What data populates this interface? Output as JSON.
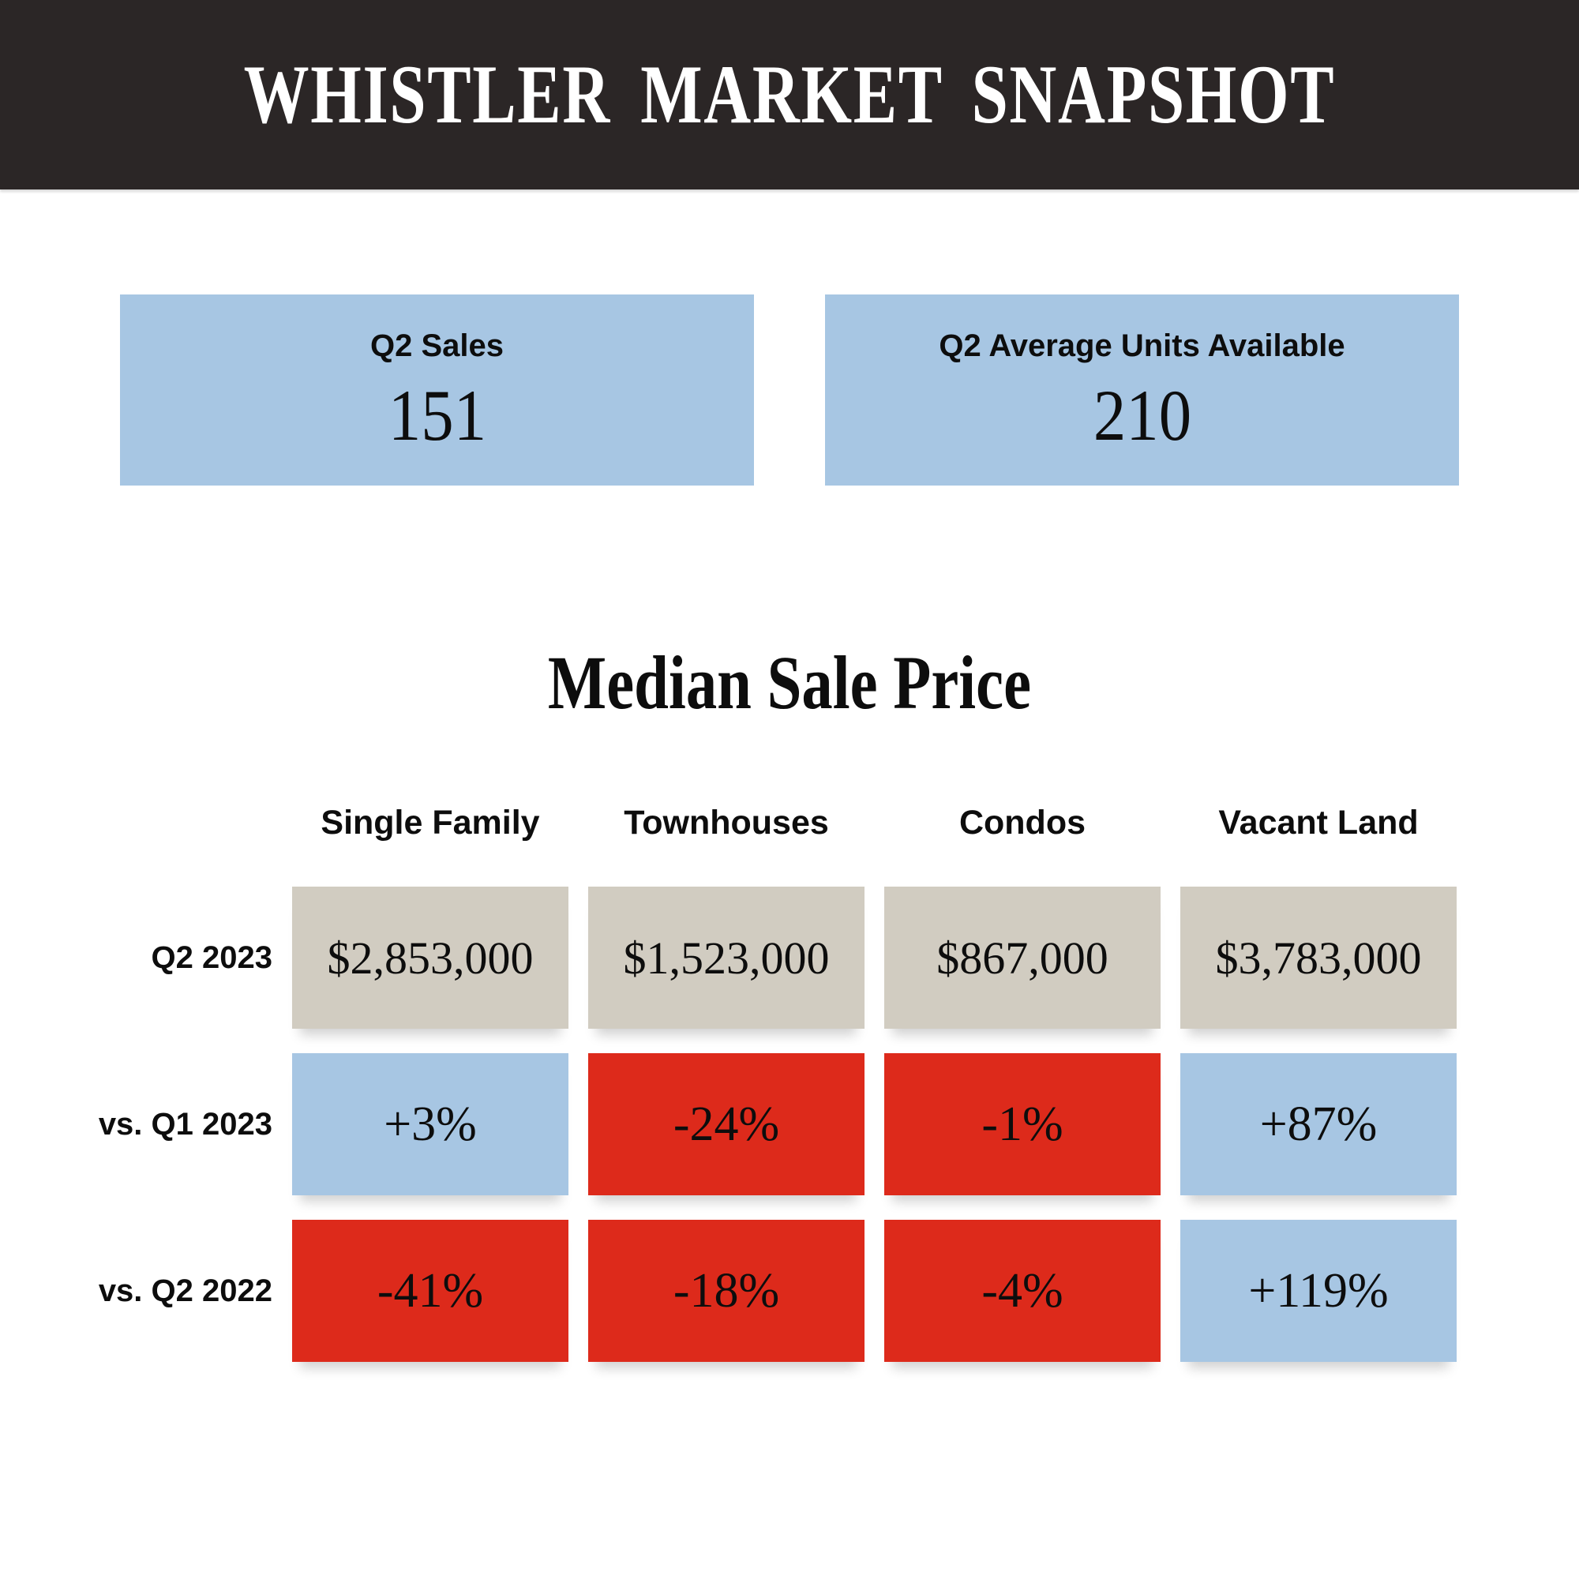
{
  "header": {
    "title": "WHISTLER MARKET SNAPSHOT"
  },
  "stats": [
    {
      "label": "Q2 Sales",
      "value": "151"
    },
    {
      "label": "Q2 Average Units Available",
      "value": "210"
    }
  ],
  "section": {
    "title": "Median Sale Price"
  },
  "table": {
    "columns": [
      "Single Family",
      "Townhouses",
      "Condos",
      "Vacant Land"
    ],
    "rows": [
      {
        "label": "Q2 2023",
        "cells": [
          {
            "text": "$2,853,000",
            "tone": "neutral"
          },
          {
            "text": "$1,523,000",
            "tone": "neutral"
          },
          {
            "text": "$867,000",
            "tone": "neutral"
          },
          {
            "text": "$3,783,000",
            "tone": "neutral"
          }
        ]
      },
      {
        "label": "vs. Q1 2023",
        "cells": [
          {
            "text": "+3%",
            "tone": "positive"
          },
          {
            "text": "-24%",
            "tone": "negative"
          },
          {
            "text": "-1%",
            "tone": "negative"
          },
          {
            "text": "+87%",
            "tone": "positive"
          }
        ]
      },
      {
        "label": "vs. Q2 2022",
        "cells": [
          {
            "text": "-41%",
            "tone": "negative"
          },
          {
            "text": "-18%",
            "tone": "negative"
          },
          {
            "text": "-4%",
            "tone": "negative"
          },
          {
            "text": "+119%",
            "tone": "positive"
          }
        ]
      }
    ]
  },
  "colors": {
    "header_bg": "#2b2626",
    "header_text": "#ffffff",
    "stat_box": "#a7c6e3",
    "neutral_cell": "#d1ccc1",
    "positive_cell": "#a7c6e3",
    "negative_cell": "#dd2a1b",
    "text": "#0d0d0d"
  },
  "chart_data": {
    "type": "table",
    "title": "Whistler Market Snapshot",
    "stats": [
      {
        "label": "Q2 Sales",
        "value": 151
      },
      {
        "label": "Q2 Average Units Available",
        "value": 210
      }
    ],
    "table_title": "Median Sale Price",
    "columns": [
      "Single Family",
      "Townhouses",
      "Condos",
      "Vacant Land"
    ],
    "rows": [
      {
        "label": "Q2 2023",
        "values": [
          "$2,853,000",
          "$1,523,000",
          "$867,000",
          "$3,783,000"
        ]
      },
      {
        "label": "vs. Q1 2023",
        "values": [
          "+3%",
          "-24%",
          "-1%",
          "+87%"
        ]
      },
      {
        "label": "vs. Q2 2022",
        "values": [
          "-41%",
          "-18%",
          "-4%",
          "+119%"
        ]
      }
    ],
    "legend_hint": "blue = positive change, red = negative change, beige = current median price"
  }
}
